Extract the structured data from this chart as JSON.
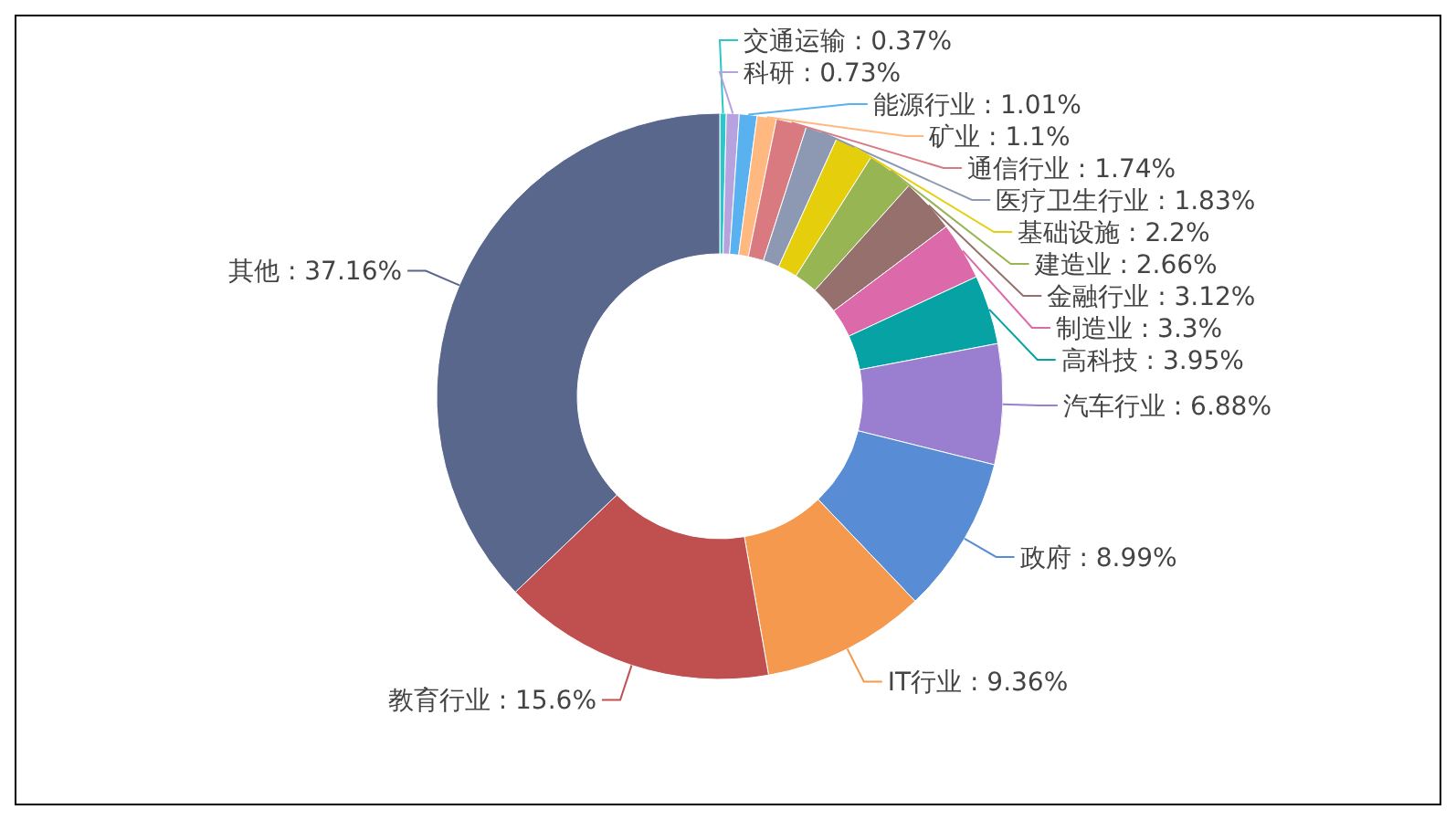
{
  "chart_data": {
    "type": "donut",
    "categories": [
      "交通运输",
      "科研",
      "能源行业",
      "矿业",
      "通信行业",
      "医疗卫生行业",
      "基础设施",
      "建造业",
      "金融行业",
      "制造业",
      "高科技",
      "汽车行业",
      "政府",
      "IT行业",
      "教育行业",
      "其他"
    ],
    "values": [
      0.37,
      0.73,
      1.01,
      1.1,
      1.74,
      1.83,
      2.2,
      2.66,
      3.12,
      3.3,
      3.95,
      6.88,
      8.99,
      9.36,
      15.6,
      37.16
    ],
    "value_labels": [
      "0.37%",
      "0.73%",
      "1.01%",
      "1.1%",
      "1.74%",
      "1.83%",
      "2.2%",
      "2.66%",
      "3.12%",
      "3.3%",
      "3.95%",
      "6.88%",
      "8.99%",
      "9.36%",
      "15.6%",
      "37.16%"
    ],
    "colors": [
      "#2ec7c9",
      "#b6a2de",
      "#5ab1ef",
      "#ffb980",
      "#d87a80",
      "#8d98b3",
      "#e5cf0d",
      "#97b552",
      "#95706d",
      "#dc69aa",
      "#07a2a4",
      "#9a7fd1",
      "#588dd5",
      "#f5994e",
      "#c05050",
      "#59678c"
    ]
  }
}
